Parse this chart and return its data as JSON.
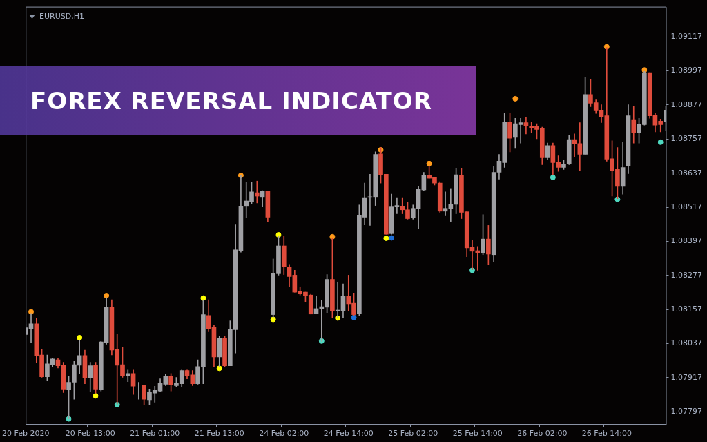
{
  "chart_data": {
    "type": "candlestick",
    "title": "FOREX REVERSAL INDICATOR",
    "subtitle": "EURUSD,H1",
    "categories": [
      "20 Feb 2020",
      null,
      null,
      null,
      null,
      null,
      null,
      null,
      null,
      null,
      null,
      null,
      "20 Feb 13:00",
      null,
      null,
      null,
      null,
      null,
      null,
      null,
      null,
      null,
      null,
      null,
      "21 Feb 01:00",
      null,
      null,
      null,
      null,
      null,
      null,
      null,
      null,
      null,
      null,
      null,
      "21 Feb 13:00",
      null,
      null,
      null,
      null,
      null,
      null,
      null,
      null,
      null,
      null,
      null,
      "24 Feb 02:00",
      null,
      null,
      null,
      null,
      null,
      null,
      null,
      null,
      null,
      null,
      null,
      "24 Feb 14:00",
      null,
      null,
      null,
      null,
      null,
      null,
      null,
      null,
      null,
      null,
      null,
      "25 Feb 02:00",
      null,
      null,
      null,
      null,
      null,
      null,
      null,
      null,
      null,
      null,
      null,
      "25 Feb 14:00",
      null,
      null,
      null,
      null,
      null,
      null,
      null,
      null,
      null,
      null,
      null,
      "26 Feb 02:00",
      null,
      null,
      null,
      null,
      null,
      null,
      null,
      null,
      null,
      null,
      null,
      "26 Feb 14:00",
      null,
      null,
      null,
      null,
      null,
      null,
      null,
      null,
      null,
      null,
      null
    ],
    "ohlc": [
      [
        1.08069,
        1.08107,
        1.08062,
        1.08093
      ],
      [
        1.0809,
        1.08143,
        1.0804,
        1.08107
      ],
      [
        1.08107,
        1.08127,
        1.07971,
        1.07995
      ],
      [
        1.07997,
        1.08016,
        1.07918,
        1.0792
      ],
      [
        1.0792,
        1.07997,
        1.07908,
        1.07966
      ],
      [
        1.07963,
        1.07985,
        1.07954,
        1.07983
      ],
      [
        1.0798,
        1.07985,
        1.07951,
        1.07959
      ],
      [
        1.07961,
        1.07971,
        1.07865,
        1.07877
      ],
      [
        1.07875,
        1.07923,
        1.07774,
        1.07901
      ],
      [
        1.07901,
        1.07975,
        1.07841,
        1.07963
      ],
      [
        1.07961,
        1.08047,
        1.07932,
        1.07995
      ],
      [
        1.07995,
        1.08014,
        1.07896,
        1.07915
      ],
      [
        1.07915,
        1.07971,
        1.07867,
        1.07959
      ],
      [
        1.07961,
        1.07971,
        1.07863,
        1.07877
      ],
      [
        1.07875,
        1.08045,
        1.0787,
        1.08043
      ],
      [
        1.0804,
        1.08199,
        1.08035,
        1.08165
      ],
      [
        1.08165,
        1.08191,
        1.07997,
        1.08014
      ],
      [
        1.08016,
        1.08071,
        1.07824,
        1.07961
      ],
      [
        1.07963,
        1.08023,
        1.07918,
        1.07923
      ],
      [
        1.07923,
        1.07944,
        1.07903,
        1.07932
      ],
      [
        1.07932,
        1.07944,
        1.07858,
        1.07887
      ],
      [
        1.07891,
        1.07901,
        1.07841,
        1.07891
      ],
      [
        1.07891,
        1.07891,
        1.07822,
        1.07841
      ],
      [
        1.07839,
        1.07877,
        1.07822,
        1.07867
      ],
      [
        1.07863,
        1.07887,
        1.07831,
        1.07872
      ],
      [
        1.0787,
        1.07913,
        1.07867,
        1.07899
      ],
      [
        1.07894,
        1.0793,
        1.07889,
        1.07923
      ],
      [
        1.07923,
        1.07932,
        1.0787,
        1.07891
      ],
      [
        1.07889,
        1.07918,
        1.07884,
        1.07899
      ],
      [
        1.07896,
        1.07944,
        1.07884,
        1.07942
      ],
      [
        1.07942,
        1.07944,
        1.07913,
        1.07923
      ],
      [
        1.07927,
        1.07942,
        1.07889,
        1.07896
      ],
      [
        1.07896,
        1.0798,
        1.07894,
        1.07956
      ],
      [
        1.07956,
        1.08191,
        1.07896,
        1.08139
      ],
      [
        1.08136,
        1.08191,
        1.08081,
        1.0809
      ],
      [
        1.08095,
        1.08103,
        1.07956,
        1.0799
      ],
      [
        1.0799,
        1.08062,
        1.07956,
        1.08057
      ],
      [
        1.08057,
        1.08062,
        1.07956,
        1.07959
      ],
      [
        1.07959,
        1.08117,
        1.07959,
        1.08088
      ],
      [
        1.08086,
        1.08455,
        1.08004,
        1.08367
      ],
      [
        1.08364,
        1.08628,
        1.08359,
        1.0852
      ],
      [
        1.0852,
        1.08604,
        1.08479,
        1.08539
      ],
      [
        1.08537,
        1.08604,
        1.0853,
        1.08571
      ],
      [
        1.08568,
        1.08609,
        1.08532,
        1.08556
      ],
      [
        1.08554,
        1.08575,
        1.08518,
        1.08573
      ],
      [
        1.08573,
        1.08573,
        1.08467,
        1.08482
      ],
      [
        1.08139,
        1.08335,
        1.08129,
        1.08285
      ],
      [
        1.08283,
        1.08415,
        1.08278,
        1.08381
      ],
      [
        1.08381,
        1.08415,
        1.0828,
        1.08307
      ],
      [
        1.08307,
        1.08316,
        1.08237,
        1.08273
      ],
      [
        1.08278,
        1.08295,
        1.08218,
        1.08218
      ],
      [
        1.0822,
        1.08237,
        1.08208,
        1.08213
      ],
      [
        1.08218,
        1.08218,
        1.08184,
        1.08206
      ],
      [
        1.08208,
        1.08213,
        1.08141,
        1.08141
      ],
      [
        1.08143,
        1.08203,
        1.08143,
        1.0816
      ],
      [
        1.0816,
        1.08189,
        1.08045,
        1.08167
      ],
      [
        1.08165,
        1.0828,
        1.08146,
        1.08263
      ],
      [
        1.08263,
        1.08407,
        1.08129,
        1.08151
      ],
      [
        1.08151,
        1.08254,
        1.08127,
        1.08155
      ],
      [
        1.08151,
        1.08247,
        1.08127,
        1.08203
      ],
      [
        1.08203,
        1.08278,
        1.08153,
        1.08177
      ],
      [
        1.08179,
        1.08215,
        1.08136,
        1.08139
      ],
      [
        1.08141,
        1.08525,
        1.08134,
        1.08487
      ],
      [
        1.08482,
        1.08602,
        1.08455,
        1.08551
      ],
      [
        1.08554,
        1.08633,
        1.08453,
        1.08554
      ],
      [
        1.08554,
        1.08712,
        1.08523,
        1.08703
      ],
      [
        1.08705,
        1.08727,
        1.08602,
        1.08631
      ],
      [
        1.08633,
        1.08633,
        1.08422,
        1.08422
      ],
      [
        1.08424,
        1.08563,
        1.08422,
        1.08518
      ],
      [
        1.08518,
        1.08551,
        1.08494,
        1.08523
      ],
      [
        1.0852,
        1.08551,
        1.08494,
        1.08508
      ],
      [
        1.08508,
        1.08535,
        1.08475,
        1.08477
      ],
      [
        1.08479,
        1.08525,
        1.08475,
        1.08513
      ],
      [
        1.08511,
        1.08592,
        1.08441,
        1.0858
      ],
      [
        1.08578,
        1.0864,
        1.08575,
        1.08628
      ],
      [
        1.08628,
        1.08662,
        1.08619,
        1.08619
      ],
      [
        1.08623,
        1.08623,
        1.08595,
        1.08602
      ],
      [
        1.08602,
        1.08607,
        1.08499,
        1.08503
      ],
      [
        1.08503,
        1.08571,
        1.08487,
        1.08513
      ],
      [
        1.08511,
        1.08583,
        1.08467,
        1.08527
      ],
      [
        1.08527,
        1.08655,
        1.08494,
        1.08631
      ],
      [
        1.08628,
        1.08655,
        1.08477,
        1.08499
      ],
      [
        1.08501,
        1.08501,
        1.08343,
        1.08374
      ],
      [
        1.08376,
        1.084,
        1.08297,
        1.08362
      ],
      [
        1.08364,
        1.08379,
        1.08295,
        1.08357
      ],
      [
        1.08355,
        1.08491,
        1.0835,
        1.08405
      ],
      [
        1.08405,
        1.08453,
        1.08314,
        1.08352
      ],
      [
        1.0835,
        1.08662,
        1.08326,
        1.0864
      ],
      [
        1.0864,
        1.08703,
        1.08616,
        1.08679
      ],
      [
        1.08674,
        1.08847,
        1.08657,
        1.08818
      ],
      [
        1.08818,
        1.08847,
        1.08712,
        1.0876
      ],
      [
        1.08763,
        1.0883,
        1.08724,
        1.08811
      ],
      [
        1.08808,
        1.0883,
        1.08743,
        1.08815
      ],
      [
        1.08815,
        1.08835,
        1.08775,
        1.08803
      ],
      [
        1.08803,
        1.08818,
        1.08779,
        1.08796
      ],
      [
        1.08803,
        1.08811,
        1.08758,
        1.08791
      ],
      [
        1.08794,
        1.08799,
        1.08667,
        1.08691
      ],
      [
        1.08691,
        1.08743,
        1.08683,
        1.08734
      ],
      [
        1.08734,
        1.08743,
        1.08631,
        1.08674
      ],
      [
        1.08676,
        1.08698,
        1.08643,
        1.08657
      ],
      [
        1.08657,
        1.08683,
        1.0865,
        1.08669
      ],
      [
        1.08669,
        1.0877,
        1.08667,
        1.08755
      ],
      [
        1.08755,
        1.08775,
        1.08695,
        1.08739
      ],
      [
        1.08741,
        1.08815,
        1.08645,
        1.08703
      ],
      [
        1.08703,
        1.08974,
        1.08703,
        1.08914
      ],
      [
        1.08914,
        1.08967,
        1.08871,
        1.08883
      ],
      [
        1.08885,
        1.08895,
        1.08847,
        1.08859
      ],
      [
        1.08859,
        1.08878,
        1.08815,
        1.08835
      ],
      [
        1.08839,
        1.09079,
        1.08679,
        1.08686
      ],
      [
        1.08688,
        1.08751,
        1.08556,
        1.08647
      ],
      [
        1.0865,
        1.08727,
        1.08547,
        1.0859
      ],
      [
        1.0859,
        1.08746,
        1.08563,
        1.08657
      ],
      [
        1.08662,
        1.08878,
        1.08635,
        1.08839
      ],
      [
        1.08823,
        1.08871,
        1.08743,
        1.08779
      ],
      [
        1.08779,
        1.0883,
        1.08743,
        1.08808
      ],
      [
        1.08808,
        1.08995,
        1.08806,
        1.08991
      ],
      [
        1.08991,
        1.08991,
        1.0883,
        1.08839
      ],
      [
        1.08842,
        1.08847,
        1.08782,
        1.08806
      ],
      [
        1.0882,
        1.08827,
        1.08782,
        1.08808
      ],
      [
        1.08818,
        1.08871,
        1.08787,
        1.08859
      ]
    ],
    "colors": [
      "#a0a0a4",
      "#a0a0a4",
      "#e04c3c",
      "#e04c3c",
      "#a0a0a4",
      "#a0a0a4",
      "#e04c3c",
      "#e04c3c",
      "#a0a0a4",
      "#a0a0a4",
      "#a0a0a4",
      "#e04c3c",
      "#a0a0a4",
      "#e04c3c",
      "#a0a0a4",
      "#a0a0a4",
      "#e04c3c",
      "#e04c3c",
      "#e04c3c",
      "#a0a0a4",
      "#e04c3c",
      "#a0a0a4",
      "#e04c3c",
      "#a0a0a4",
      "#a0a0a4",
      "#a0a0a4",
      "#a0a0a4",
      "#e04c3c",
      "#a0a0a4",
      "#a0a0a4",
      "#e04c3c",
      "#e04c3c",
      "#a0a0a4",
      "#a0a0a4",
      "#e04c3c",
      "#e04c3c",
      "#a0a0a4",
      "#e04c3c",
      "#a0a0a4",
      "#a0a0a4",
      "#a0a0a4",
      "#a0a0a4",
      "#a0a0a4",
      "#e04c3c",
      "#a0a0a4",
      "#e04c3c",
      "#a0a0a4",
      "#a0a0a4",
      "#e04c3c",
      "#e04c3c",
      "#e04c3c",
      "#e04c3c",
      "#e04c3c",
      "#e04c3c",
      "#a0a0a4",
      "#a0a0a4",
      "#a0a0a4",
      "#e04c3c",
      "#a0a0a4",
      "#a0a0a4",
      "#e04c3c",
      "#e04c3c",
      "#a0a0a4",
      "#a0a0a4",
      "#a0a0a4",
      "#a0a0a4",
      "#e04c3c",
      "#e04c3c",
      "#a0a0a4",
      "#a0a0a4",
      "#e04c3c",
      "#e04c3c",
      "#a0a0a4",
      "#a0a0a4",
      "#a0a0a4",
      "#e04c3c",
      "#e04c3c",
      "#e04c3c",
      "#a0a0a4",
      "#a0a0a4",
      "#a0a0a4",
      "#e04c3c",
      "#e04c3c",
      "#e04c3c",
      "#e04c3c",
      "#a0a0a4",
      "#e04c3c",
      "#a0a0a4",
      "#a0a0a4",
      "#a0a0a4",
      "#e04c3c",
      "#a0a0a4",
      "#a0a0a4",
      "#e04c3c",
      "#e04c3c",
      "#e04c3c",
      "#e04c3c",
      "#a0a0a4",
      "#e04c3c",
      "#e04c3c",
      "#a0a0a4",
      "#a0a0a4",
      "#e04c3c",
      "#e04c3c",
      "#a0a0a4",
      "#e04c3c",
      "#e04c3c",
      "#e04c3c",
      "#e04c3c",
      "#e04c3c",
      "#e04c3c",
      "#a0a0a4",
      "#a0a0a4",
      "#e04c3c",
      "#a0a0a4",
      "#a0a0a4",
      "#e04c3c",
      "#e04c3c",
      "#e04c3c",
      "#a0a0a4"
    ],
    "series": [
      {
        "type": "scatter",
        "color": "#ff9a1a",
        "values": [
          null,
          1.08149,
          null,
          null,
          null,
          null,
          null,
          null,
          null,
          null,
          null,
          null,
          null,
          null,
          null,
          1.08206,
          null,
          null,
          null,
          null,
          null,
          null,
          null,
          null,
          null,
          null,
          null,
          null,
          null,
          null,
          null,
          null,
          null,
          null,
          null,
          null,
          null,
          null,
          null,
          null,
          1.08629,
          null,
          null,
          null,
          null,
          null,
          null,
          null,
          null,
          null,
          null,
          null,
          null,
          null,
          null,
          null,
          null,
          1.08413,
          null,
          null,
          null,
          null,
          null,
          null,
          null,
          null,
          1.08719,
          null,
          null,
          null,
          null,
          null,
          null,
          null,
          null,
          1.08671,
          null,
          null,
          null,
          null,
          null,
          null,
          null,
          null,
          null,
          null,
          null,
          null,
          null,
          null,
          null,
          1.08899,
          null,
          null,
          null,
          null,
          null,
          null,
          null,
          null,
          null,
          null,
          null,
          null,
          null,
          null,
          null,
          null,
          1.09082,
          null,
          null,
          null,
          null,
          null,
          null,
          1.09,
          null,
          null,
          null,
          null
        ]
      },
      {
        "type": "scatter",
        "color": "#4fd8c0",
        "values": [
          null,
          null,
          null,
          null,
          null,
          null,
          null,
          null,
          1.07772,
          null,
          null,
          null,
          null,
          null,
          null,
          null,
          null,
          1.07822,
          null,
          null,
          null,
          null,
          null,
          null,
          null,
          null,
          null,
          null,
          null,
          null,
          null,
          null,
          null,
          null,
          null,
          null,
          null,
          null,
          null,
          null,
          null,
          null,
          null,
          null,
          null,
          null,
          null,
          null,
          null,
          null,
          null,
          null,
          null,
          null,
          null,
          1.08046,
          null,
          null,
          null,
          null,
          null,
          null,
          null,
          null,
          null,
          null,
          null,
          null,
          null,
          null,
          null,
          null,
          null,
          null,
          null,
          null,
          null,
          null,
          null,
          null,
          null,
          null,
          null,
          1.08295,
          null,
          null,
          null,
          null,
          null,
          null,
          null,
          null,
          null,
          null,
          null,
          null,
          null,
          null,
          1.08622,
          null,
          null,
          null,
          null,
          null,
          null,
          null,
          null,
          null,
          null,
          null,
          1.08545,
          null,
          null,
          null,
          null,
          null,
          null,
          null,
          1.08746,
          null
        ]
      },
      {
        "type": "scatter",
        "color": "#ffff00",
        "values": [
          null,
          null,
          null,
          null,
          null,
          null,
          null,
          null,
          null,
          null,
          1.08058,
          null,
          null,
          1.07853,
          null,
          null,
          null,
          null,
          null,
          null,
          null,
          null,
          null,
          null,
          null,
          null,
          null,
          null,
          null,
          null,
          null,
          null,
          null,
          1.08197,
          null,
          null,
          1.0795,
          null,
          null,
          null,
          null,
          null,
          null,
          null,
          null,
          null,
          1.08122,
          1.0842,
          null,
          null,
          null,
          null,
          null,
          null,
          null,
          null,
          null,
          null,
          1.08127,
          null,
          null,
          null,
          null,
          null,
          null,
          null,
          null,
          1.08408,
          null,
          null,
          null,
          null,
          null,
          null,
          null,
          null,
          null,
          null,
          null,
          null,
          null,
          null,
          null,
          null,
          null,
          null,
          null,
          null,
          null,
          null,
          null,
          null,
          null,
          null,
          null,
          null,
          null,
          null,
          null,
          null,
          null,
          null,
          null,
          null,
          null,
          null,
          null,
          null,
          null,
          null,
          null,
          null,
          null,
          null,
          null,
          null,
          null,
          null,
          null,
          null
        ]
      },
      {
        "type": "scatter",
        "color": "#1e6fd8",
        "values": [
          null,
          null,
          null,
          null,
          null,
          null,
          null,
          null,
          null,
          null,
          null,
          null,
          null,
          null,
          null,
          null,
          null,
          null,
          null,
          null,
          null,
          null,
          null,
          null,
          null,
          null,
          null,
          null,
          null,
          null,
          null,
          null,
          null,
          null,
          null,
          null,
          null,
          null,
          null,
          null,
          null,
          null,
          null,
          null,
          null,
          null,
          null,
          null,
          null,
          null,
          null,
          null,
          null,
          null,
          null,
          null,
          null,
          null,
          null,
          null,
          null,
          1.08129,
          null,
          null,
          null,
          null,
          null,
          null,
          1.08409,
          null,
          null,
          null,
          null,
          null,
          null,
          null,
          null,
          null,
          null,
          null,
          null,
          null,
          null,
          null,
          null,
          null,
          null,
          null,
          null,
          null,
          null,
          null,
          null,
          null,
          null,
          null,
          null,
          null,
          null,
          null,
          null,
          null,
          null,
          null,
          null,
          null,
          null,
          null,
          null,
          null,
          null,
          null,
          null,
          null,
          null,
          null,
          null,
          null,
          null,
          null
        ]
      }
    ],
    "ylim": [
      1.07752,
      1.09223
    ],
    "yticks": [
      1.07797,
      1.07917,
      1.08037,
      1.08157,
      1.08277,
      1.08397,
      1.08517,
      1.08637,
      1.08757,
      1.08877,
      1.08997,
      1.09117
    ],
    "legend": false,
    "grid": false,
    "marker": "circle"
  }
}
